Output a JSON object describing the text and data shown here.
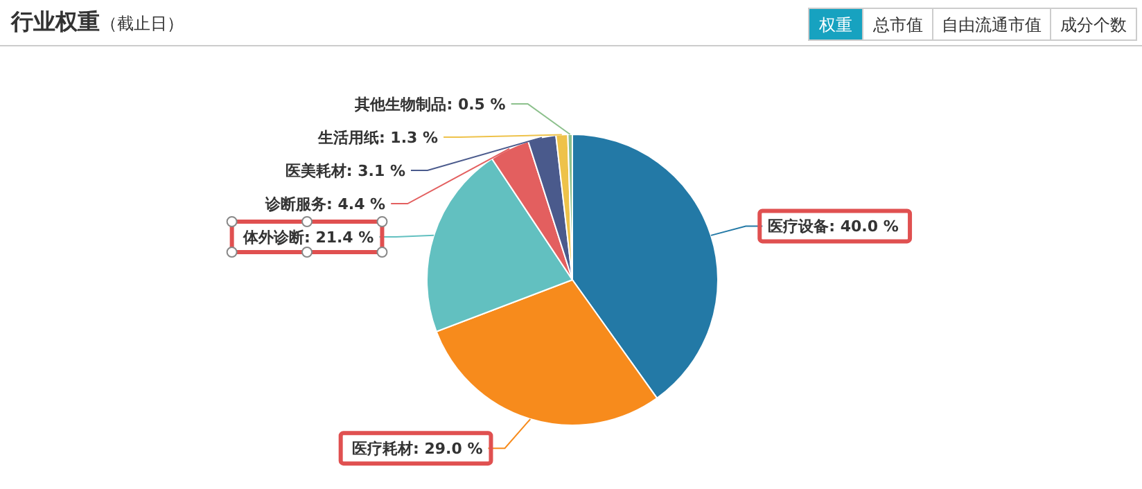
{
  "chart_data": {
    "type": "pie",
    "title": "行业权重",
    "subtitle": "（截止日）",
    "categories": [
      "医疗设备",
      "医疗耗材",
      "体外诊断",
      "诊断服务",
      "医美耗材",
      "生活用纸",
      "其他生物制品"
    ],
    "values": [
      40.0,
      29.0,
      21.4,
      4.4,
      3.1,
      1.3,
      0.5
    ],
    "colors": [
      "#2379a6",
      "#f78b1c",
      "#62c0c0",
      "#e35f5f",
      "#4a5a8c",
      "#eec24a",
      "#8cc08c"
    ],
    "value_labels": [
      "40.0 %",
      "29.0 %",
      "21.4 %",
      "4.4 %",
      "3.1 %",
      "1.3 %",
      "0.5 %"
    ],
    "annotations": [
      "权重",
      "总市值",
      "自由流通市值",
      "成分个数"
    ]
  }
}
